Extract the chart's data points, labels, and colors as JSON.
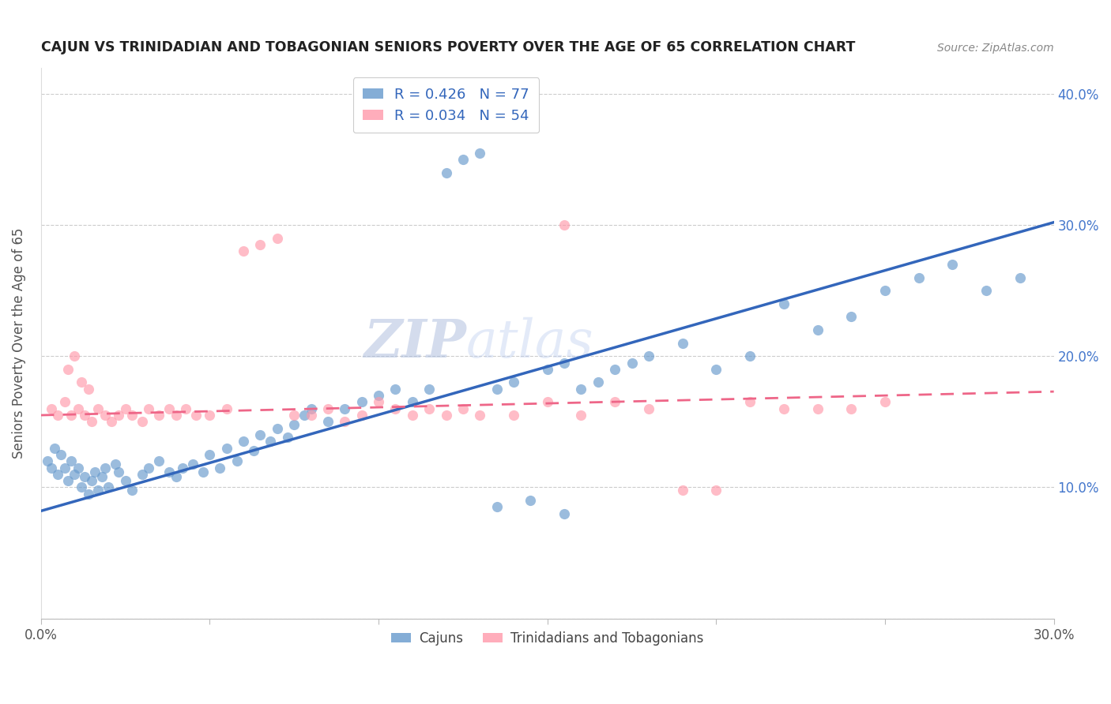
{
  "title": "CAJUN VS TRINIDADIAN AND TOBAGONIAN SENIORS POVERTY OVER THE AGE OF 65 CORRELATION CHART",
  "source": "Source: ZipAtlas.com",
  "ylabel": "Seniors Poverty Over the Age of 65",
  "xlim": [
    0.0,
    0.3
  ],
  "ylim": [
    0.0,
    0.42
  ],
  "cajun_R": 0.426,
  "cajun_N": 77,
  "trini_R": 0.034,
  "trini_N": 54,
  "cajun_color": "#6699CC",
  "trini_color": "#FF99AA",
  "cajun_line_color": "#3366BB",
  "trini_line_color": "#EE6688",
  "legend_cajun_label": "Cajuns",
  "legend_trini_label": "Trinidadians and Tobagonians",
  "watermark_zip": "ZIP",
  "watermark_atlas": "atlas",
  "background_color": "#ffffff",
  "grid_color": "#cccccc",
  "cajun_x": [
    0.002,
    0.003,
    0.004,
    0.005,
    0.006,
    0.007,
    0.008,
    0.009,
    0.01,
    0.011,
    0.012,
    0.013,
    0.014,
    0.015,
    0.016,
    0.017,
    0.018,
    0.019,
    0.02,
    0.022,
    0.023,
    0.025,
    0.027,
    0.03,
    0.032,
    0.035,
    0.038,
    0.04,
    0.042,
    0.045,
    0.048,
    0.05,
    0.053,
    0.055,
    0.058,
    0.06,
    0.063,
    0.065,
    0.068,
    0.07,
    0.073,
    0.075,
    0.078,
    0.08,
    0.085,
    0.09,
    0.095,
    0.1,
    0.105,
    0.11,
    0.115,
    0.12,
    0.125,
    0.13,
    0.135,
    0.14,
    0.15,
    0.155,
    0.16,
    0.165,
    0.17,
    0.175,
    0.18,
    0.19,
    0.2,
    0.21,
    0.22,
    0.23,
    0.24,
    0.25,
    0.26,
    0.27,
    0.28,
    0.29,
    0.135,
    0.145,
    0.155
  ],
  "cajun_y": [
    0.12,
    0.115,
    0.13,
    0.11,
    0.125,
    0.115,
    0.105,
    0.12,
    0.11,
    0.115,
    0.1,
    0.108,
    0.095,
    0.105,
    0.112,
    0.098,
    0.108,
    0.115,
    0.1,
    0.118,
    0.112,
    0.105,
    0.098,
    0.11,
    0.115,
    0.12,
    0.112,
    0.108,
    0.115,
    0.118,
    0.112,
    0.125,
    0.115,
    0.13,
    0.12,
    0.135,
    0.128,
    0.14,
    0.135,
    0.145,
    0.138,
    0.148,
    0.155,
    0.16,
    0.15,
    0.16,
    0.165,
    0.17,
    0.175,
    0.165,
    0.175,
    0.34,
    0.35,
    0.355,
    0.175,
    0.18,
    0.19,
    0.195,
    0.175,
    0.18,
    0.19,
    0.195,
    0.2,
    0.21,
    0.19,
    0.2,
    0.24,
    0.22,
    0.23,
    0.25,
    0.26,
    0.27,
    0.25,
    0.26,
    0.085,
    0.09,
    0.08
  ],
  "trini_x": [
    0.003,
    0.005,
    0.007,
    0.009,
    0.011,
    0.013,
    0.015,
    0.017,
    0.019,
    0.021,
    0.023,
    0.025,
    0.027,
    0.03,
    0.032,
    0.035,
    0.038,
    0.04,
    0.043,
    0.046,
    0.05,
    0.055,
    0.06,
    0.065,
    0.07,
    0.075,
    0.08,
    0.085,
    0.09,
    0.095,
    0.1,
    0.105,
    0.11,
    0.115,
    0.12,
    0.125,
    0.13,
    0.14,
    0.15,
    0.155,
    0.16,
    0.17,
    0.18,
    0.19,
    0.2,
    0.21,
    0.22,
    0.23,
    0.24,
    0.25,
    0.008,
    0.01,
    0.012,
    0.014
  ],
  "trini_y": [
    0.16,
    0.155,
    0.165,
    0.155,
    0.16,
    0.155,
    0.15,
    0.16,
    0.155,
    0.15,
    0.155,
    0.16,
    0.155,
    0.15,
    0.16,
    0.155,
    0.16,
    0.155,
    0.16,
    0.155,
    0.155,
    0.16,
    0.28,
    0.285,
    0.29,
    0.155,
    0.155,
    0.16,
    0.15,
    0.155,
    0.165,
    0.16,
    0.155,
    0.16,
    0.155,
    0.16,
    0.155,
    0.155,
    0.165,
    0.3,
    0.155,
    0.165,
    0.16,
    0.098,
    0.098,
    0.165,
    0.16,
    0.16,
    0.16,
    0.165,
    0.19,
    0.2,
    0.18,
    0.175
  ],
  "cajun_line_x0": 0.0,
  "cajun_line_y0": 0.082,
  "cajun_line_x1": 0.3,
  "cajun_line_y1": 0.302,
  "trini_line_x0": 0.0,
  "trini_line_y0": 0.155,
  "trini_line_x1": 0.3,
  "trini_line_y1": 0.173
}
